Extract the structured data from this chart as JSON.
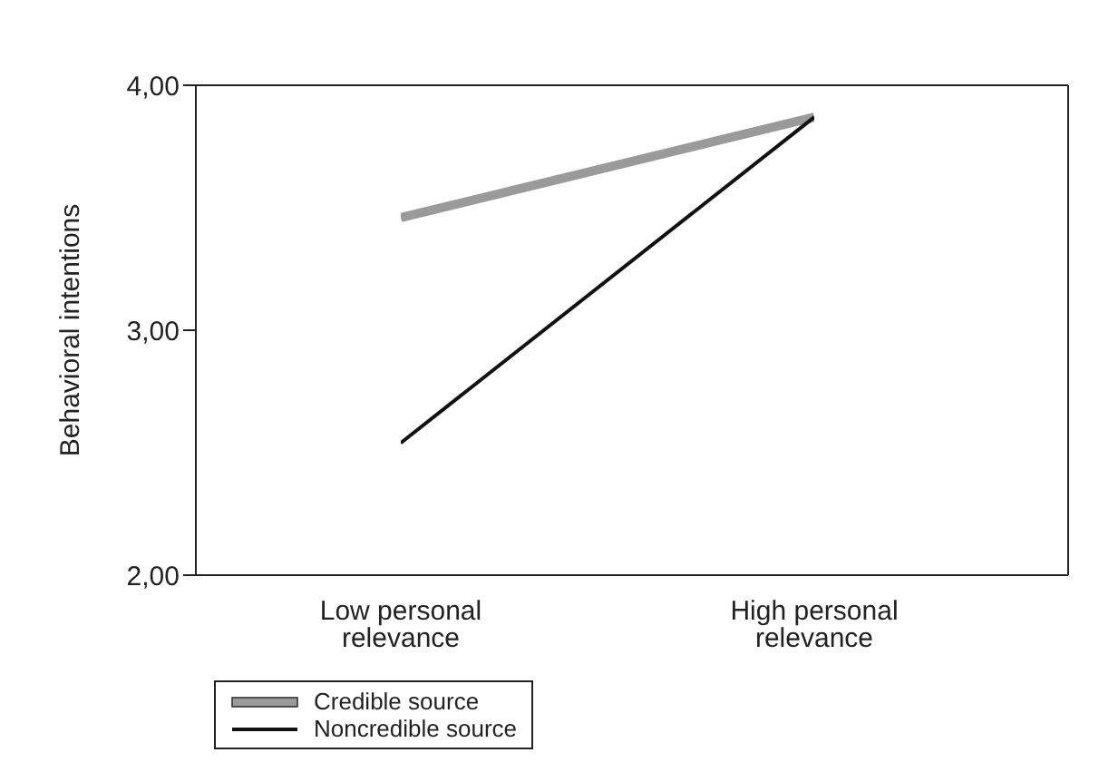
{
  "chart_data": {
    "type": "line",
    "ylabel": "Behavioral intentions",
    "categories": [
      "Low personal relevance",
      "High personal relevance"
    ],
    "series": [
      {
        "name": "Credible source",
        "color": "#9a9a9a",
        "values": [
          3.46,
          3.87
        ]
      },
      {
        "name": "Noncredible source",
        "color": "#111111",
        "values": [
          2.54,
          3.87
        ]
      }
    ],
    "ylim": [
      2,
      4
    ],
    "yticks": [
      {
        "value": 2,
        "label": "2,00"
      },
      {
        "value": 3,
        "label": "3,00"
      },
      {
        "value": 4,
        "label": "4,00"
      }
    ],
    "grid": false,
    "legend": "bottom left",
    "marker": "none",
    "line_style": "solid"
  }
}
